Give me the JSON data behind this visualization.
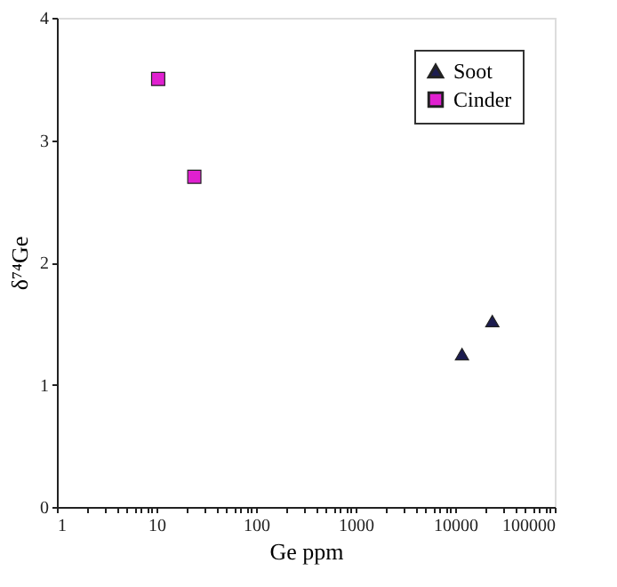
{
  "chart_data": {
    "type": "scatter",
    "xlabel": "Ge ppm",
    "ylabel": "δ⁷⁴Ge",
    "log": "x",
    "xlim": [
      1,
      100000
    ],
    "ylim": [
      0,
      4
    ],
    "yticks": [
      0,
      1,
      2,
      3,
      4
    ],
    "xticks": [
      1,
      {
        "value": 2,
        "label": null
      },
      {
        "value": 3,
        "label": null
      },
      {
        "value": 4,
        "label": null
      },
      {
        "value": 5,
        "label": null
      },
      {
        "value": 6,
        "label": null
      },
      {
        "value": 7,
        "label": null
      },
      {
        "value": 8,
        "label": null
      },
      {
        "value": 9,
        "label": null
      },
      10,
      {
        "value": 20,
        "label": null
      },
      {
        "value": 30,
        "label": null
      },
      {
        "value": 40,
        "label": null
      },
      {
        "value": 50,
        "label": null
      },
      {
        "value": 60,
        "label": null
      },
      {
        "value": 70,
        "label": null
      },
      {
        "value": 80,
        "label": null
      },
      {
        "value": 90,
        "label": null
      },
      100,
      {
        "value": 200,
        "label": null
      },
      {
        "value": 300,
        "label": null
      },
      {
        "value": 400,
        "label": null
      },
      {
        "value": 500,
        "label": null
      },
      {
        "value": 600,
        "label": null
      },
      {
        "value": 700,
        "label": null
      },
      {
        "value": 800,
        "label": null
      },
      {
        "value": 900,
        "label": null
      },
      1000,
      {
        "value": 2000,
        "label": null
      },
      {
        "value": 3000,
        "label": null
      },
      {
        "value": 4000,
        "label": null
      },
      {
        "value": 5000,
        "label": null
      },
      {
        "value": 6000,
        "label": null
      },
      {
        "value": 7000,
        "label": null
      },
      {
        "value": 8000,
        "label": null
      },
      {
        "value": 9000,
        "label": null
      },
      10000,
      {
        "value": 20000,
        "label": null
      },
      {
        "value": 30000,
        "label": null
      },
      {
        "value": 40000,
        "label": null
      },
      {
        "value": 50000,
        "label": null
      },
      {
        "value": 60000,
        "label": null
      },
      {
        "value": 70000,
        "label": null
      },
      {
        "value": 80000,
        "label": null
      },
      {
        "value": 90000,
        "label": null
      },
      100000
    ],
    "grid": false,
    "legend": "top right",
    "series": [
      {
        "name": "Soot",
        "color": "#1c1c50",
        "marker": "triangle",
        "x": [
          11700,
          23600
        ],
        "values": [
          1.25,
          1.52
        ]
      },
      {
        "name": "Cinder",
        "color": "#e020d0",
        "marker": "square",
        "x": [
          10.4,
          24
        ],
        "values": [
          3.5,
          2.7
        ]
      }
    ]
  }
}
